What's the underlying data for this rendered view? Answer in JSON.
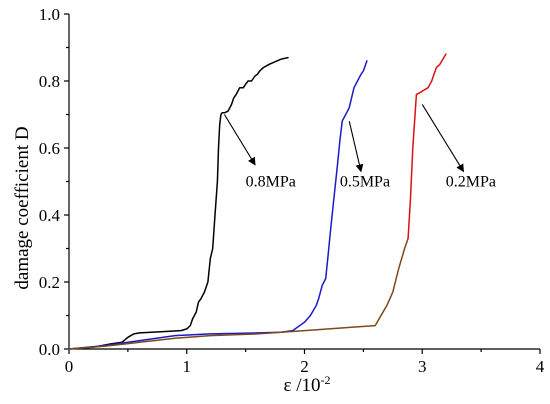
{
  "chart_data": {
    "type": "line",
    "title": "",
    "xlabel": "ε /10",
    "xlabel_exponent": "-2",
    "ylabel": "damage coefficient D",
    "xlim": [
      0,
      4
    ],
    "ylim": [
      0,
      1
    ],
    "xticks": [
      0,
      1,
      2,
      3,
      4
    ],
    "xtick_labels": [
      "0",
      "1",
      "2",
      "3",
      "4"
    ],
    "yticks": [
      0,
      0.2,
      0.4,
      0.6,
      0.8,
      1.0
    ],
    "ytick_labels": [
      "0.0",
      "0.2",
      "0.4",
      "0.6",
      "0.8",
      "1.0"
    ],
    "grid": false,
    "legend": "none",
    "series": [
      {
        "name": "0.8MPa",
        "color": "#000000",
        "segments": [
          {
            "color": "#000000",
            "x": [
              0.0,
              0.2,
              0.35,
              0.45,
              0.5,
              0.55,
              0.6,
              0.8,
              0.95,
              1.0,
              1.03,
              1.05,
              1.08,
              1.1,
              1.12,
              1.15,
              1.18,
              1.2,
              1.22,
              1.24,
              1.26,
              1.27,
              1.28,
              1.29,
              1.3,
              1.32,
              1.35,
              1.38,
              1.4,
              1.42,
              1.45,
              1.48,
              1.5,
              1.52,
              1.55,
              1.58,
              1.6,
              1.62,
              1.65,
              1.7,
              1.8,
              1.86
            ],
            "y": [
              0.0,
              0.005,
              0.015,
              0.02,
              0.035,
              0.045,
              0.048,
              0.052,
              0.055,
              0.06,
              0.07,
              0.09,
              0.11,
              0.14,
              0.15,
              0.17,
              0.2,
              0.27,
              0.3,
              0.4,
              0.5,
              0.6,
              0.67,
              0.7,
              0.705,
              0.705,
              0.71,
              0.73,
              0.75,
              0.76,
              0.78,
              0.78,
              0.79,
              0.8,
              0.8,
              0.815,
              0.82,
              0.83,
              0.84,
              0.85,
              0.865,
              0.87
            ]
          }
        ]
      },
      {
        "name": "0.5MPa",
        "color": "#1a1acc",
        "segments": [
          {
            "color": "#1a1acc",
            "x": [
              0.0,
              0.3,
              0.6,
              0.9,
              1.2,
              1.6,
              1.8,
              1.9,
              2.0,
              2.05,
              2.1,
              2.12,
              2.15,
              2.18,
              2.2,
              2.22,
              2.25,
              2.28,
              2.3,
              2.32,
              2.35,
              2.38,
              2.4,
              2.42,
              2.45,
              2.48,
              2.5,
              2.53
            ],
            "y": [
              0.0,
              0.01,
              0.025,
              0.04,
              0.045,
              0.048,
              0.05,
              0.055,
              0.08,
              0.1,
              0.13,
              0.15,
              0.19,
              0.21,
              0.28,
              0.35,
              0.45,
              0.55,
              0.62,
              0.68,
              0.7,
              0.72,
              0.75,
              0.78,
              0.8,
              0.82,
              0.83,
              0.86
            ]
          }
        ]
      },
      {
        "name": "0.2MPa",
        "color": "#dd1111",
        "segments": [
          {
            "color": "#7a4a1a",
            "x": [
              0.0,
              0.3,
              0.6,
              0.9,
              1.2,
              1.6,
              2.0,
              2.4,
              2.6,
              2.65,
              2.7,
              2.75,
              2.8,
              2.85,
              2.88
            ],
            "y": [
              0.0,
              0.008,
              0.02,
              0.032,
              0.04,
              0.045,
              0.055,
              0.065,
              0.07,
              0.1,
              0.13,
              0.17,
              0.24,
              0.3,
              0.33
            ]
          },
          {
            "color": "#dd1111",
            "x": [
              2.88,
              2.9,
              2.92,
              2.95,
              2.98,
              3.0,
              3.05,
              3.08,
              3.1,
              3.12,
              3.15,
              3.2
            ],
            "y": [
              0.33,
              0.45,
              0.6,
              0.76,
              0.765,
              0.77,
              0.78,
              0.8,
              0.82,
              0.84,
              0.85,
              0.88
            ]
          }
        ]
      }
    ],
    "annotations": [
      {
        "text": "0.8MPa",
        "target": [
          1.32,
          0.7
        ],
        "arrow_tip": [
          1.58,
          0.55
        ],
        "label_at": [
          1.5,
          0.485
        ]
      },
      {
        "text": "0.5MPa",
        "target": [
          2.38,
          0.68
        ],
        "arrow_tip": [
          2.48,
          0.53
        ],
        "label_at": [
          2.3,
          0.485
        ]
      },
      {
        "text": "0.2MPa",
        "target": [
          3.0,
          0.73
        ],
        "arrow_tip": [
          3.35,
          0.53
        ],
        "label_at": [
          3.2,
          0.485
        ]
      }
    ]
  }
}
